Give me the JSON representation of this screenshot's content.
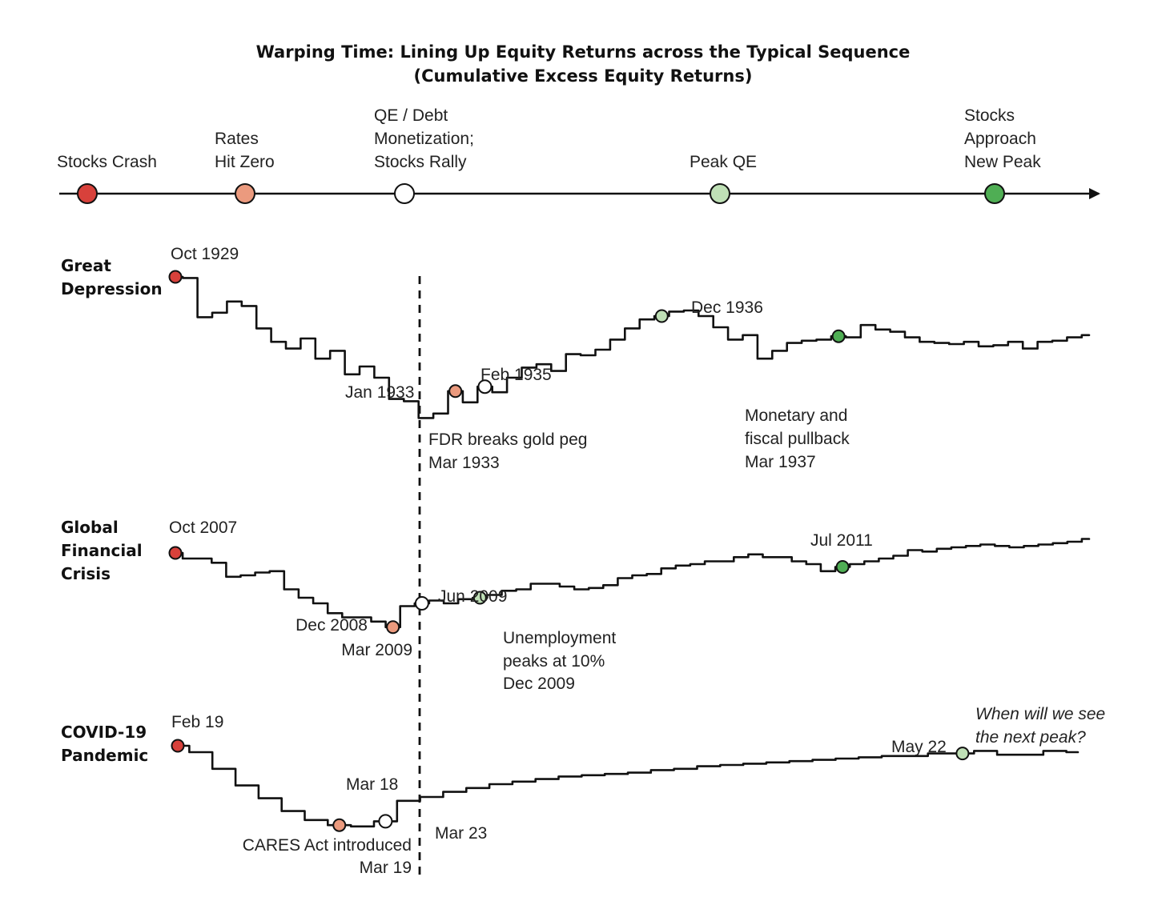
{
  "title_line1": "Warping Time: Lining Up Equity Returns across the Typical Sequence",
  "title_line2": "(Cumulative Excess Equity Returns)",
  "colors": {
    "crash": "#d8413b",
    "zero": "#eb9a7e",
    "qe": "#ffffff",
    "peak_qe": "#bfe0b6",
    "new_peak": "#4fae54",
    "line": "#111111"
  },
  "timeline": {
    "stages": [
      {
        "label_lines": [
          "Stocks Crash"
        ],
        "color_key": "crash",
        "icon": "red-circle"
      },
      {
        "label_lines": [
          "Rates",
          "Hit Zero"
        ],
        "color_key": "zero",
        "icon": "salmon-circle"
      },
      {
        "label_lines": [
          "QE / Debt",
          "Monetization;",
          "Stocks Rally"
        ],
        "color_key": "qe",
        "icon": "white-circle"
      },
      {
        "label_lines": [
          "Peak QE"
        ],
        "color_key": "peak_qe",
        "icon": "light-green-circle"
      },
      {
        "label_lines": [
          "Stocks",
          "Approach",
          "New Peak"
        ],
        "color_key": "new_peak",
        "icon": "green-circle"
      }
    ]
  },
  "chart_data": [
    {
      "type": "line",
      "panel": "Great Depression",
      "panel_label_lines": [
        "Great",
        "Depression"
      ],
      "series": [
        {
          "values": [
            0.0,
            -0.1,
            -3.6,
            -3.2,
            -2.2,
            -2.6,
            -4.6,
            -5.8,
            -6.4,
            -5.5,
            -7.3,
            -6.6,
            -8.7,
            -8.0,
            -9.0,
            -10.9,
            -11.1,
            -12.6,
            -12.2,
            -10.2,
            -11.2,
            -9.8,
            -10.3,
            -9.0,
            -8.1,
            -7.8,
            -8.4,
            -6.9,
            -7.0,
            -6.5,
            -5.6,
            -4.6,
            -3.8,
            -3.5,
            -3.1,
            -3.0,
            -3.5,
            -4.5,
            -5.6,
            -5.2,
            -7.3,
            -6.6,
            -5.9,
            -5.7,
            -5.6,
            -5.3,
            -5.4,
            -4.3,
            -4.7,
            -4.9,
            -5.4,
            -5.8,
            -5.9,
            -6.0,
            -5.8,
            -6.2,
            -6.1,
            -5.8,
            -6.4,
            -5.8,
            -5.7,
            -5.4,
            -5.2
          ]
        }
      ],
      "events": [
        {
          "date": "Oct 1929",
          "stage": "crash"
        },
        {
          "date": "Jan 1933",
          "stage": "zero"
        },
        {
          "date": "Mar 1933",
          "stage": "qe",
          "note": "FDR breaks gold peg"
        },
        {
          "date": "Feb 1935",
          "stage": "peak_qe"
        },
        {
          "date": "Dec 1936",
          "stage": "new_peak"
        },
        {
          "date": "Mar 1937",
          "note": "Monetary and fiscal pullback"
        }
      ],
      "labels": {
        "crash_date": "Oct 1929",
        "zero_date": "Jan 1933",
        "qe_note_1": "FDR breaks gold peg",
        "qe_date": "Mar 1933",
        "peakqe_date": "Feb 1935",
        "newpeak_date": "Dec 1936",
        "pullback_1": "Monetary and",
        "pullback_2": "fiscal pullback",
        "pullback_date": "Mar 1937"
      }
    },
    {
      "type": "line",
      "panel": "Global Financial Crisis",
      "panel_label_lines": [
        "Global",
        "Financial",
        "Crisis"
      ],
      "series": [
        {
          "values": [
            0.0,
            -0.4,
            -0.4,
            -0.7,
            -1.7,
            -1.6,
            -1.4,
            -1.3,
            -2.6,
            -3.2,
            -3.6,
            -4.3,
            -4.6,
            -4.6,
            -4.9,
            -5.3,
            -3.8,
            -3.6,
            -3.4,
            -3.6,
            -3.3,
            -3.2,
            -3.0,
            -2.7,
            -2.6,
            -2.2,
            -2.2,
            -2.4,
            -2.6,
            -2.5,
            -2.3,
            -1.8,
            -1.6,
            -1.5,
            -1.1,
            -0.9,
            -0.8,
            -0.6,
            -0.6,
            -0.3,
            -0.1,
            -0.3,
            -0.3,
            -0.6,
            -0.8,
            -1.3,
            -1.0,
            -0.8,
            -0.6,
            -0.4,
            -0.2,
            0.2,
            0.1,
            0.3,
            0.4,
            0.5,
            0.6,
            0.5,
            0.4,
            0.5,
            0.6,
            0.7,
            0.8,
            1.0
          ]
        }
      ],
      "events": [
        {
          "date": "Oct 2007",
          "stage": "crash"
        },
        {
          "date": "Dec 2008",
          "stage": "zero"
        },
        {
          "date": "Mar 2009",
          "stage": "qe"
        },
        {
          "date": "Jun 2009",
          "stage": "peak_qe"
        },
        {
          "date": "Jul 2011",
          "stage": "new_peak"
        },
        {
          "date": "Dec 2009",
          "note": "Unemployment peaks at 10%"
        }
      ],
      "labels": {
        "crash_date": "Oct 2007",
        "zero_date": "Dec 2008",
        "qe_date": "Mar 2009",
        "peakqe_date": "Jun 2009",
        "newpeak_date": "Jul 2011",
        "unemp_1": "Unemployment",
        "unemp_2": "peaks at 10%",
        "unemp_date": "Dec 2009"
      }
    },
    {
      "type": "line",
      "panel": "COVID-19 Pandemic",
      "panel_label_lines": [
        "COVID-19",
        "Pandemic"
      ],
      "series": [
        {
          "values": [
            0.0,
            -0.5,
            -1.8,
            -3.1,
            -4.1,
            -5.1,
            -5.8,
            -6.2,
            -6.3,
            -5.9,
            -4.3,
            -4.0,
            -3.6,
            -3.3,
            -3.0,
            -2.8,
            -2.6,
            -2.4,
            -2.3,
            -2.2,
            -2.1,
            -1.9,
            -1.8,
            -1.6,
            -1.5,
            -1.4,
            -1.3,
            -1.2,
            -1.1,
            -1.0,
            -0.9,
            -0.8,
            -0.8,
            -0.6,
            -0.6,
            -0.4,
            -0.7,
            -0.7,
            -0.4,
            -0.5
          ]
        }
      ],
      "events": [
        {
          "date": "Feb 19",
          "stage": "crash"
        },
        {
          "date": "Mar 18",
          "stage": "zero"
        },
        {
          "date": "Mar 19",
          "note": "CARES Act introduced"
        },
        {
          "date": "Mar 23",
          "stage": "qe"
        },
        {
          "date": "May 22",
          "stage": "peak_qe"
        }
      ],
      "labels": {
        "crash_date": "Feb 19",
        "zero_date": "Mar 18",
        "cares_note": "CARES Act introduced",
        "cares_date": "Mar 19",
        "qe_date": "Mar 23",
        "peakqe_date": "May 22",
        "question_1": "When will we see",
        "question_2": "the next peak?"
      }
    }
  ]
}
